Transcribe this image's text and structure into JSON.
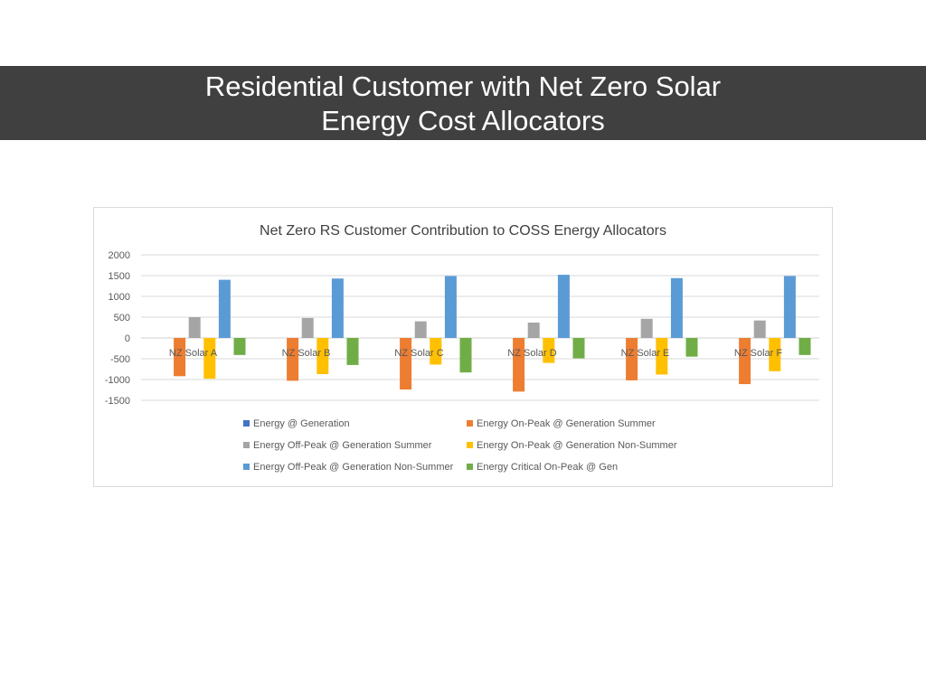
{
  "slide": {
    "title_line1": "Residential Customer with Net Zero Solar",
    "title_line2": "Energy Cost Allocators"
  },
  "chart_data": {
    "type": "bar",
    "title": "Net Zero RS Customer Contribution to COSS Energy Allocators",
    "xlabel": "",
    "ylabel": "",
    "ylim": [
      -1500,
      2000
    ],
    "yticks": [
      2000,
      1500,
      1000,
      500,
      0,
      -500,
      -1000,
      -1500
    ],
    "grid": true,
    "legend_position": "bottom",
    "categories": [
      "NZ Solar A",
      "NZ Solar B",
      "NZ Solar C",
      "NZ Solar D",
      "NZ Solar E",
      "NZ Solar F"
    ],
    "series": [
      {
        "name": "Energy @ Generation",
        "color": "#4472C4",
        "values": [
          0,
          0,
          0,
          0,
          0,
          0
        ]
      },
      {
        "name": "Energy On-Peak @ Generation Summer",
        "color": "#ED7D31",
        "values": [
          -920,
          -1030,
          -1240,
          -1290,
          -1020,
          -1110
        ]
      },
      {
        "name": "Energy Off-Peak @ Generation Summer",
        "color": "#A5A5A5",
        "values": [
          500,
          480,
          400,
          370,
          460,
          420
        ]
      },
      {
        "name": "Energy On-Peak @ Generation Non-Summer",
        "color": "#FFC000",
        "values": [
          -980,
          -870,
          -640,
          -600,
          -880,
          -800
        ]
      },
      {
        "name": "Energy Off-Peak @ Generation Non-Summer",
        "color": "#5B9BD5",
        "values": [
          1400,
          1430,
          1490,
          1520,
          1440,
          1490
        ]
      },
      {
        "name": "Energy Critical On-Peak @ Gen",
        "color": "#70AD47",
        "values": [
          -410,
          -650,
          -830,
          -490,
          -450,
          -410
        ]
      }
    ]
  }
}
